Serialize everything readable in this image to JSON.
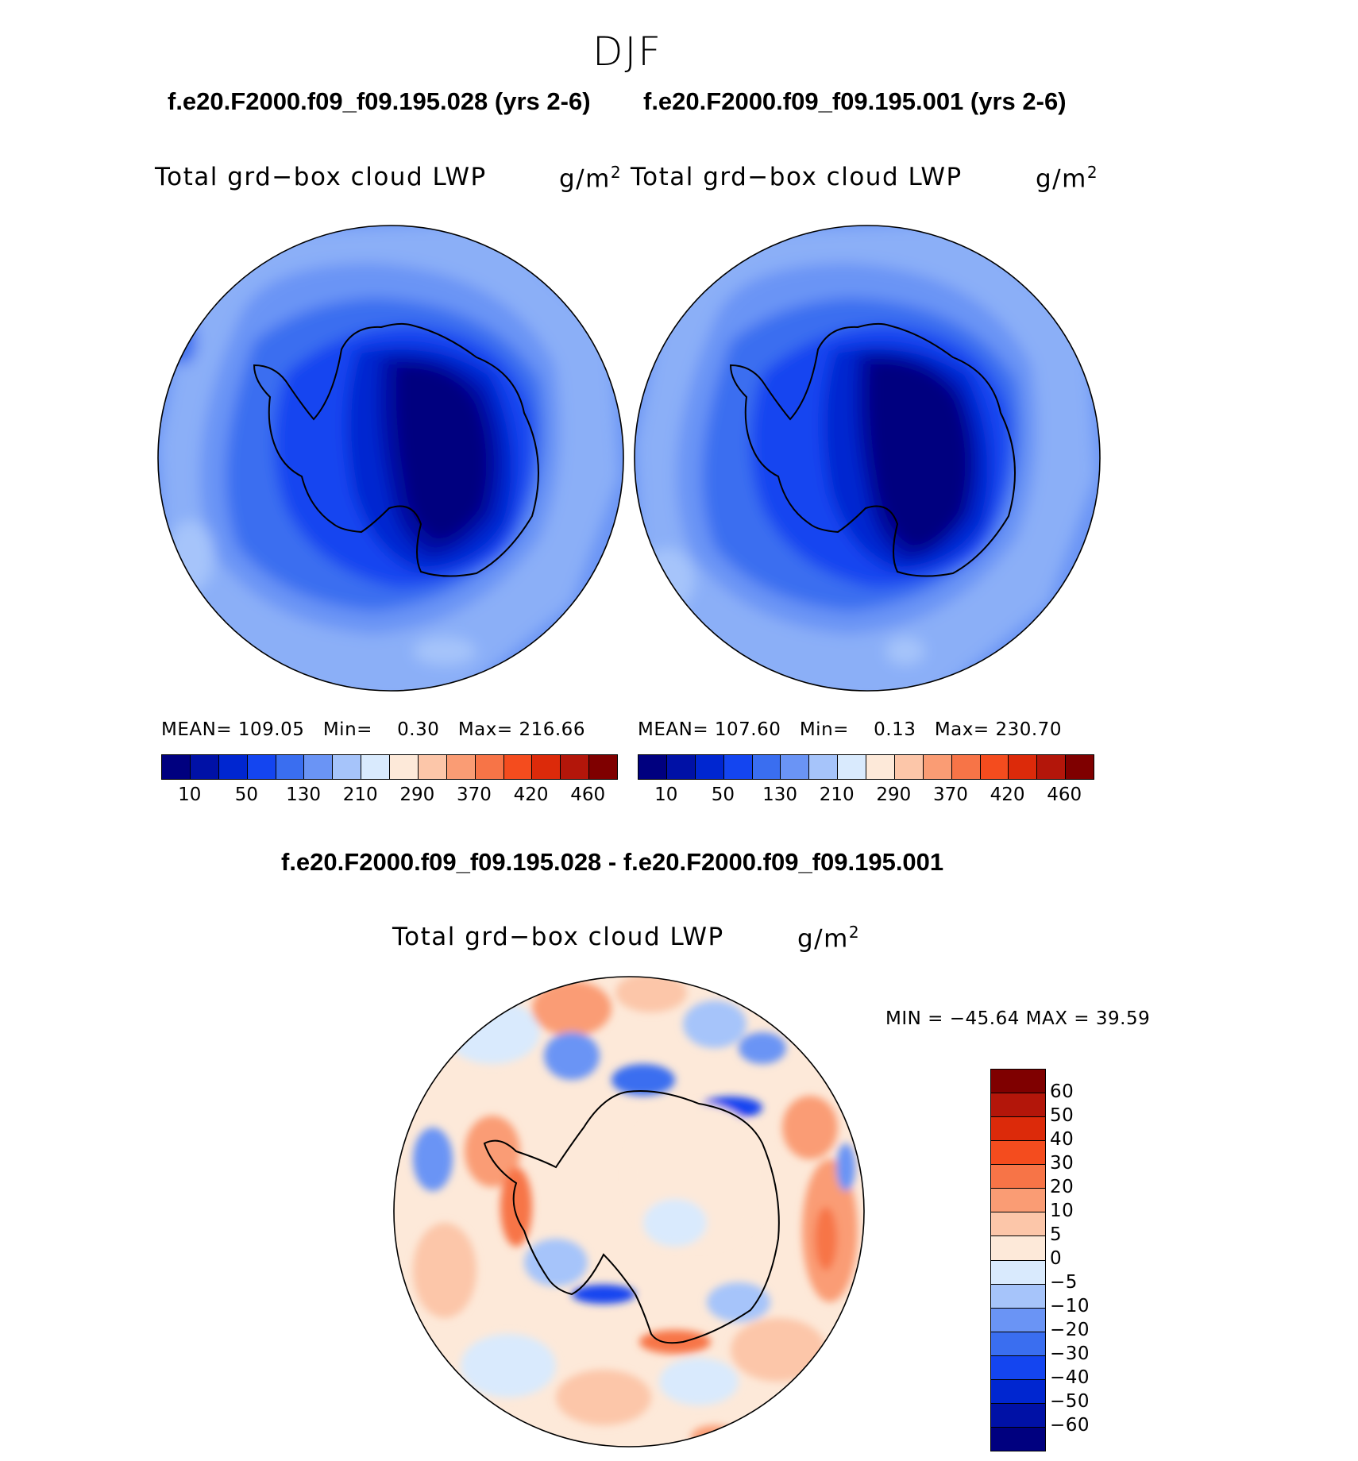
{
  "figure": {
    "season": "DJF",
    "case1_title": "f.e20.F2000.f09_f09.195.028 (yrs 2-6)",
    "case2_title": "f.e20.F2000.f09_f09.195.001 (yrs 2-6)",
    "diff_title": "f.e20.F2000.f09_f09.195.028 - f.e20.F2000.f09_f09.195.001"
  },
  "panels": {
    "left": {
      "variable": "Total grd−box cloud LWP",
      "units": "g/m",
      "units_sup": "2",
      "mean_label": "MEAN=",
      "mean": "109.05",
      "min_label": "Min=",
      "min": "0.30",
      "max_label": "Max=",
      "max": "216.66"
    },
    "right": {
      "variable": "Total grd−box cloud LWP",
      "units": "g/m",
      "units_sup": "2",
      "mean_label": "MEAN=",
      "mean": "107.60",
      "min_label": "Min=",
      "min": "0.13",
      "max_label": "Max=",
      "max": "230.70"
    },
    "diff": {
      "variable": "Total grd−box cloud LWP",
      "units": "g/m",
      "units_sup": "2",
      "minmax_text": "MIN = −45.64 MAX =   39.59"
    }
  },
  "chart_data": [
    {
      "type": "heatmap",
      "projection": "south-polar stereographic",
      "title": "Total grd−box cloud LWP",
      "units": "g/m2",
      "stats": {
        "mean": 109.05,
        "min": 0.3,
        "max": 216.66
      },
      "colorbar": {
        "orientation": "horizontal",
        "tick_labels": [
          "10",
          "50",
          "130",
          "210",
          "290",
          "370",
          "420",
          "460"
        ],
        "colors": [
          "#00007f",
          "#0011a6",
          "#0026d0",
          "#1445f0",
          "#3a6ef0",
          "#6a94f5",
          "#a6c4fa",
          "#d9eafd",
          "#fde9d9",
          "#fcc6a9",
          "#fa9c74",
          "#f77447",
          "#f44c1e",
          "#dc2a0a",
          "#b3160a",
          "#7f0000"
        ]
      }
    },
    {
      "type": "heatmap",
      "projection": "south-polar stereographic",
      "title": "Total grd−box cloud LWP",
      "units": "g/m2",
      "stats": {
        "mean": 107.6,
        "min": 0.13,
        "max": 230.7
      },
      "colorbar": {
        "orientation": "horizontal",
        "tick_labels": [
          "10",
          "50",
          "130",
          "210",
          "290",
          "370",
          "420",
          "460"
        ],
        "colors": [
          "#00007f",
          "#0011a6",
          "#0026d0",
          "#1445f0",
          "#3a6ef0",
          "#6a94f5",
          "#a6c4fa",
          "#d9eafd",
          "#fde9d9",
          "#fcc6a9",
          "#fa9c74",
          "#f77447",
          "#f44c1e",
          "#dc2a0a",
          "#b3160a",
          "#7f0000"
        ]
      }
    },
    {
      "type": "heatmap",
      "projection": "south-polar stereographic",
      "title": "Total grd−box cloud LWP",
      "units": "g/m2",
      "stats": {
        "min": -45.64,
        "max": 39.59
      },
      "colorbar": {
        "orientation": "vertical",
        "tick_labels": [
          "60",
          "50",
          "40",
          "30",
          "20",
          "10",
          "5",
          "0",
          "−5",
          "−10",
          "−20",
          "−30",
          "−40",
          "−50",
          "−60"
        ],
        "colors": [
          "#7f0000",
          "#b3160a",
          "#dc2a0a",
          "#f44c1e",
          "#f77447",
          "#fa9c74",
          "#fcc6a9",
          "#fde9d9",
          "#d9eafd",
          "#a6c4fa",
          "#6a94f5",
          "#3a6ef0",
          "#1445f0",
          "#0026d0",
          "#0011a6",
          "#00007f"
        ]
      }
    }
  ]
}
